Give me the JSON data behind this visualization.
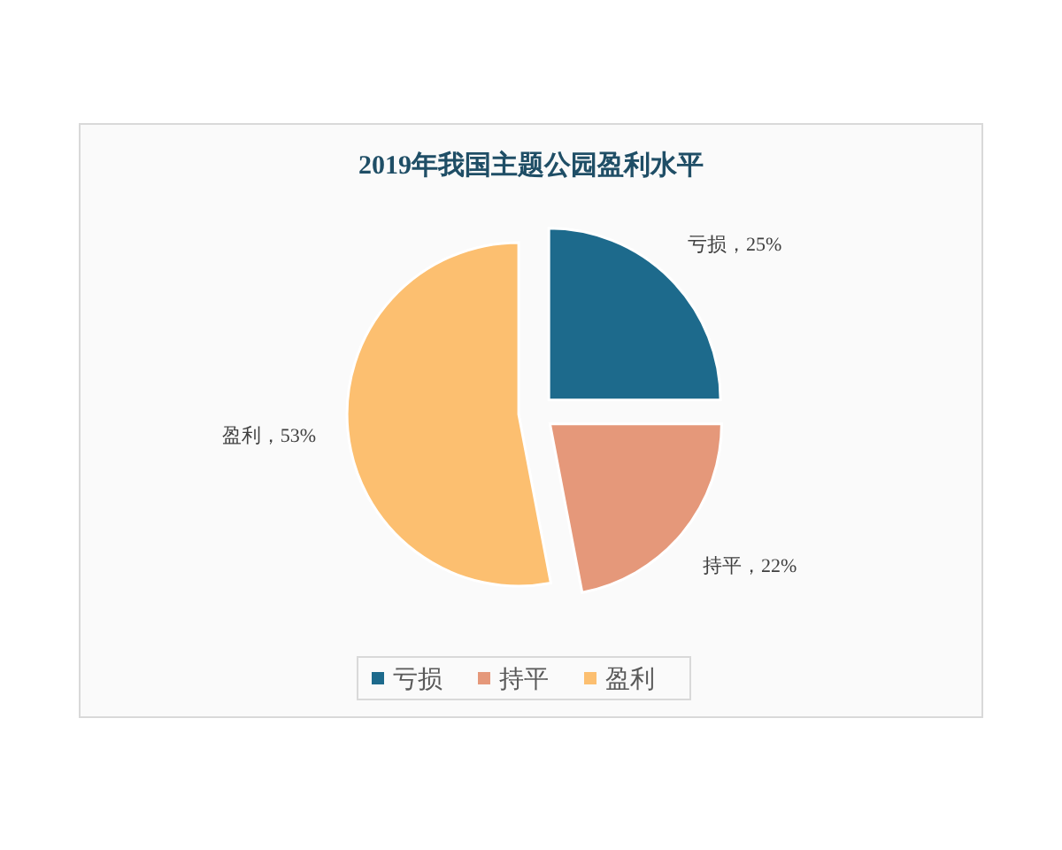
{
  "chart_data": {
    "type": "pie",
    "title": "2019年我国主题公园盈利水平",
    "categories": [
      "亏损",
      "持平",
      "盈利"
    ],
    "values": [
      25,
      22,
      53
    ],
    "colors": [
      "#1d6a8c",
      "#e5987a",
      "#fcbf70"
    ],
    "value_labels": [
      "亏损，25%",
      "持平，22%",
      "盈利，53%"
    ],
    "legend": "bottom"
  }
}
